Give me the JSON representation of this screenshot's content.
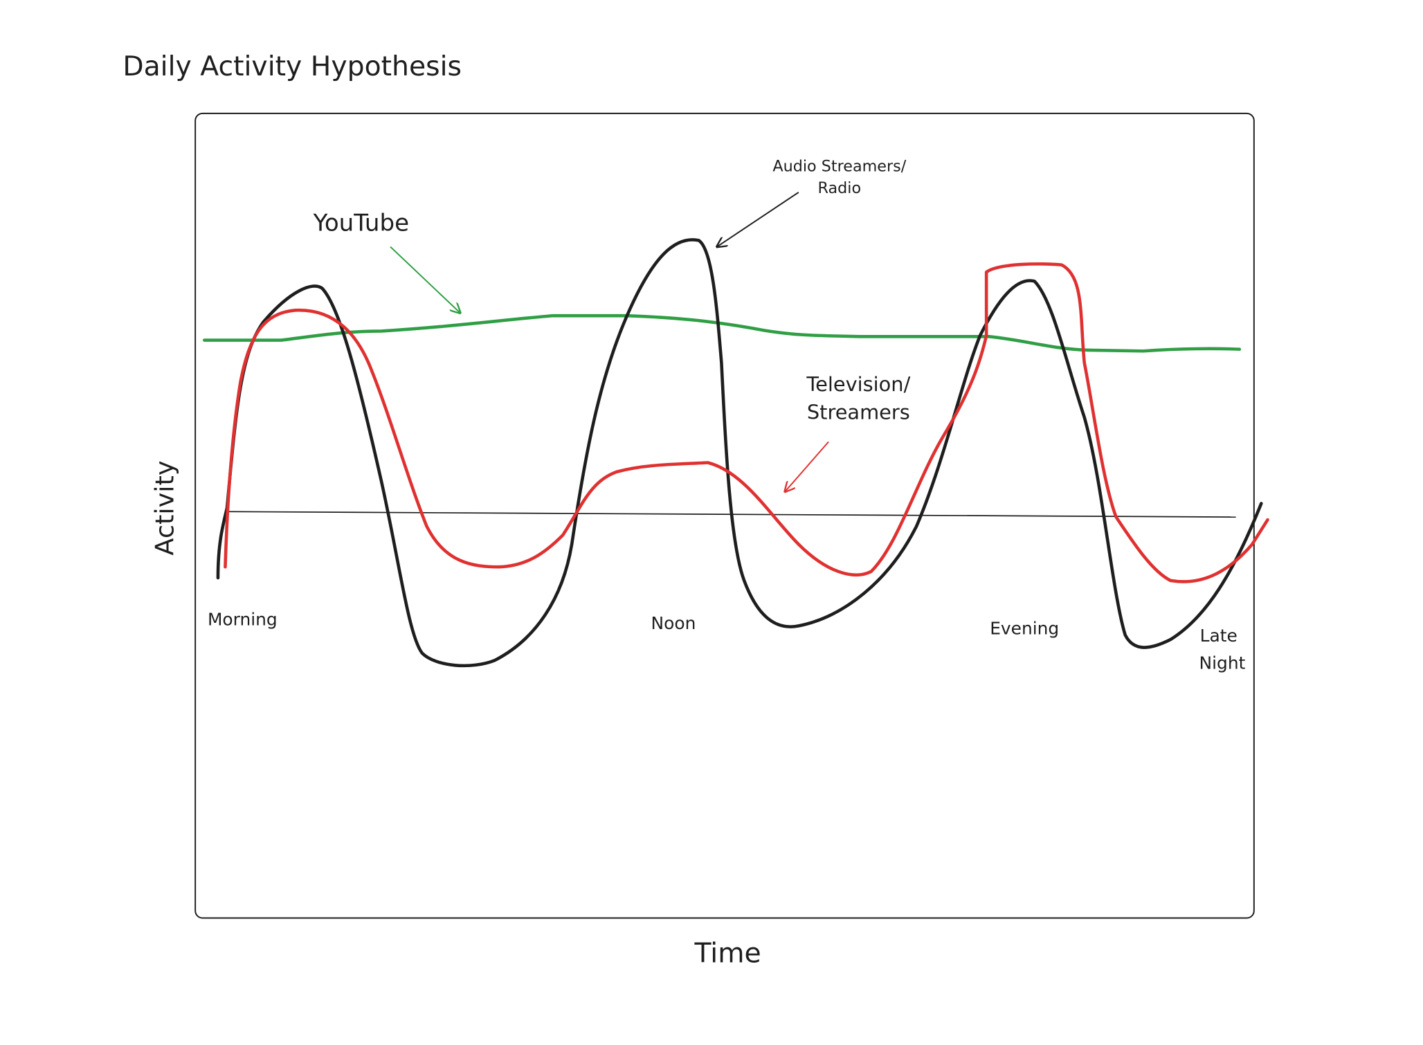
{
  "title": "Daily Activity Hypothesis",
  "axes": {
    "y_label": "Activity",
    "x_label": "Time"
  },
  "time_labels": [
    "Morning",
    "Noon",
    "Evening"
  ],
  "late_night": [
    "Late",
    "Night"
  ],
  "annotations": {
    "youtube": "YouTube",
    "audio": [
      "Audio Streamers/",
      "Radio"
    ],
    "television": [
      "Television/",
      "Streamers"
    ]
  }
}
